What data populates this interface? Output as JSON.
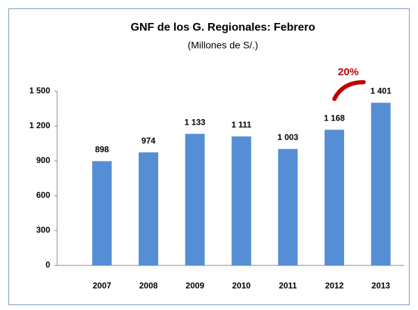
{
  "chart_data": {
    "type": "bar",
    "title": "GNF de los G. Regionales: Febrero",
    "subtitle": "(Millones de S/.)",
    "categories": [
      "2007",
      "2008",
      "2009",
      "2010",
      "2011",
      "2012",
      "2013"
    ],
    "values": [
      898,
      974,
      1133,
      1111,
      1003,
      1168,
      1401
    ],
    "value_labels": [
      "898",
      "974",
      "1 133",
      "1 111",
      "1 003",
      "1 168",
      "1 401"
    ],
    "color": "#558ed5",
    "ylim": [
      0,
      1500
    ],
    "yticks": [
      0,
      300,
      600,
      900,
      {
        "value": 1200,
        "label": "1 200"
      },
      {
        "value": 1500,
        "label": "1 500"
      }
    ],
    "grid": false,
    "annotation": "20%"
  }
}
